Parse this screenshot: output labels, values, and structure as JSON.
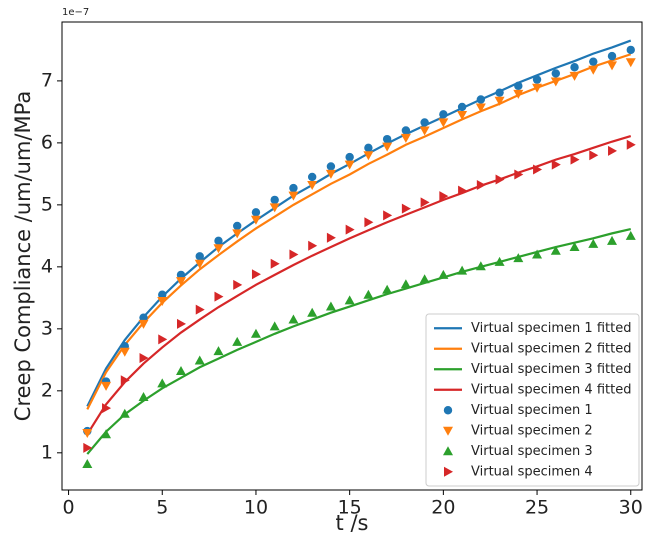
{
  "chart_data": {
    "type": "line_scatter",
    "y_label": "Creep Compliance /um/um/MPa",
    "y_offset_label": "1e−7",
    "x_label": "t /s",
    "x": [
      1,
      2,
      3,
      4,
      5,
      6,
      7,
      8,
      9,
      10,
      11,
      12,
      13,
      14,
      15,
      16,
      17,
      18,
      19,
      20,
      21,
      22,
      23,
      24,
      25,
      26,
      27,
      28,
      29,
      30
    ],
    "xlim": [
      -0.35,
      30.6
    ],
    "xticks": [
      0,
      5,
      10,
      15,
      20,
      25,
      30
    ],
    "ylim": [
      0.4,
      7.95
    ],
    "yticks": [
      1,
      2,
      3,
      4,
      5,
      6,
      7
    ],
    "legend_loc": "lower right",
    "series": [
      {
        "name": "Virtual specimen 1 fitted",
        "color": "#1f77b4",
        "kind": "line",
        "values": [
          1.75,
          2.36,
          2.82,
          3.19,
          3.52,
          3.81,
          4.07,
          4.32,
          4.54,
          4.75,
          4.95,
          5.15,
          5.32,
          5.5,
          5.66,
          5.83,
          5.99,
          6.14,
          6.28,
          6.42,
          6.56,
          6.7,
          6.83,
          6.97,
          7.09,
          7.21,
          7.32,
          7.44,
          7.54,
          7.65
        ]
      },
      {
        "name": "Virtual specimen 2 fitted",
        "color": "#ff7f0e",
        "kind": "line",
        "values": [
          1.7,
          2.3,
          2.74,
          3.1,
          3.42,
          3.7,
          3.96,
          4.19,
          4.41,
          4.62,
          4.81,
          5.0,
          5.17,
          5.34,
          5.49,
          5.66,
          5.81,
          5.97,
          6.1,
          6.24,
          6.38,
          6.51,
          6.63,
          6.77,
          6.89,
          7.0,
          7.11,
          7.23,
          7.33,
          7.43
        ]
      },
      {
        "name": "Virtual specimen 3 fitted",
        "color": "#2ca02c",
        "kind": "line",
        "values": [
          0.98,
          1.34,
          1.62,
          1.84,
          2.04,
          2.21,
          2.38,
          2.52,
          2.66,
          2.79,
          2.92,
          3.04,
          3.15,
          3.26,
          3.36,
          3.46,
          3.56,
          3.65,
          3.74,
          3.83,
          3.92,
          4.0,
          4.08,
          4.16,
          4.24,
          4.32,
          4.39,
          4.46,
          4.54,
          4.61
        ]
      },
      {
        "name": "Virtual specimen 4 fitted",
        "color": "#d62728",
        "kind": "line",
        "values": [
          1.3,
          1.78,
          2.14,
          2.44,
          2.7,
          2.94,
          3.15,
          3.35,
          3.53,
          3.71,
          3.87,
          4.03,
          4.18,
          4.32,
          4.46,
          4.59,
          4.72,
          4.84,
          4.96,
          5.08,
          5.19,
          5.31,
          5.41,
          5.52,
          5.62,
          5.73,
          5.82,
          5.92,
          6.02,
          6.11
        ]
      },
      {
        "name": "Virtual specimen 1",
        "color": "#1f77b4",
        "kind": "scatter",
        "marker": "circle",
        "values": [
          1.35,
          2.15,
          2.72,
          3.18,
          3.55,
          3.87,
          4.17,
          4.42,
          4.66,
          4.88,
          5.08,
          5.27,
          5.45,
          5.62,
          5.77,
          5.92,
          6.06,
          6.2,
          6.33,
          6.46,
          6.58,
          6.7,
          6.81,
          6.92,
          7.02,
          7.12,
          7.22,
          7.31,
          7.4,
          7.5
        ]
      },
      {
        "name": "Virtual specimen 2",
        "color": "#ff7f0e",
        "kind": "scatter",
        "marker": "triangle-down",
        "values": [
          1.32,
          2.08,
          2.63,
          3.08,
          3.45,
          3.77,
          4.05,
          4.3,
          4.54,
          4.76,
          4.96,
          5.15,
          5.32,
          5.5,
          5.65,
          5.8,
          5.94,
          6.08,
          6.2,
          6.33,
          6.45,
          6.57,
          6.68,
          6.79,
          6.89,
          6.99,
          7.08,
          7.18,
          7.25,
          7.3
        ]
      },
      {
        "name": "Virtual specimen 3",
        "color": "#2ca02c",
        "kind": "scatter",
        "marker": "triangle-up",
        "values": [
          0.82,
          1.3,
          1.63,
          1.9,
          2.12,
          2.32,
          2.49,
          2.64,
          2.79,
          2.92,
          3.04,
          3.15,
          3.26,
          3.36,
          3.46,
          3.55,
          3.63,
          3.72,
          3.8,
          3.87,
          3.94,
          4.01,
          4.08,
          4.14,
          4.2,
          4.26,
          4.32,
          4.37,
          4.42,
          4.5
        ]
      },
      {
        "name": "Virtual specimen 4",
        "color": "#d62728",
        "kind": "scatter",
        "marker": "triangle-right",
        "values": [
          1.08,
          1.72,
          2.17,
          2.53,
          2.83,
          3.08,
          3.31,
          3.52,
          3.71,
          3.88,
          4.05,
          4.2,
          4.34,
          4.47,
          4.6,
          4.72,
          4.83,
          4.94,
          5.04,
          5.14,
          5.23,
          5.32,
          5.41,
          5.49,
          5.57,
          5.65,
          5.73,
          5.8,
          5.87,
          5.97
        ]
      }
    ]
  }
}
